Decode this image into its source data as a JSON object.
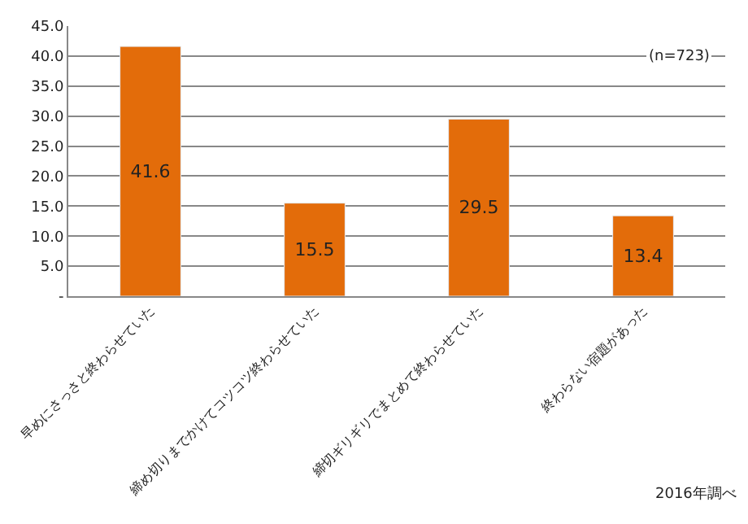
{
  "chart_data": {
    "type": "bar",
    "categories": [
      "早めにさっさと終わらせていた",
      "締め切りまでかけてコツコツ終わらせていた",
      "締切ギリギリでまとめて終わらせていた",
      "終わらない宿題があった"
    ],
    "values": [
      41.6,
      15.5,
      29.5,
      13.4
    ],
    "color": "#e36c0a",
    "ylim": [
      0,
      45
    ],
    "yticks": [
      {
        "value": 0,
        "label": "-"
      },
      {
        "value": 5,
        "label": "5.0"
      },
      {
        "value": 10,
        "label": "10.0"
      },
      {
        "value": 15,
        "label": "15.0"
      },
      {
        "value": 20,
        "label": "20.0"
      },
      {
        "value": 25,
        "label": "25.0"
      },
      {
        "value": 30,
        "label": "30.0"
      },
      {
        "value": 35,
        "label": "35.0"
      },
      {
        "value": 40,
        "label": "40.0"
      },
      {
        "value": 45,
        "label": "45.0"
      }
    ],
    "grid": "y",
    "data_labels": true,
    "annotations": [
      "(n=723)",
      "2016年調べ"
    ]
  }
}
